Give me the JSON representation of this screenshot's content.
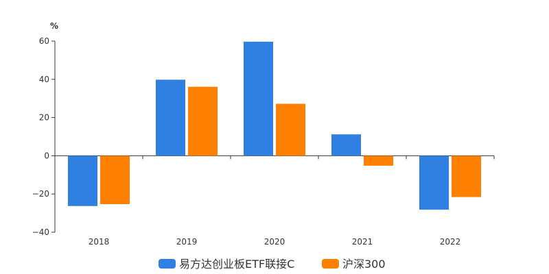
{
  "chart_data": {
    "type": "bar",
    "unit_label": "%",
    "categories": [
      "2018",
      "2019",
      "2020",
      "2021",
      "2022"
    ],
    "series": [
      {
        "name": "易方达创业板ETF联接C",
        "color": "#2f80e0",
        "values": [
          -26.3,
          39.8,
          59.7,
          11.2,
          -28.2
        ]
      },
      {
        "name": "沪深300",
        "color": "#ff7f00",
        "values": [
          -25.3,
          36.1,
          27.2,
          -5.2,
          -21.6
        ]
      }
    ],
    "ylim": [
      -40,
      60
    ],
    "yticks": [
      -40,
      -20,
      0,
      20,
      40,
      60
    ],
    "ytick_labels": [
      "−40",
      "−20",
      "0",
      "20",
      "40",
      "60"
    ],
    "grid": false,
    "legend_position": "bottom-center"
  }
}
